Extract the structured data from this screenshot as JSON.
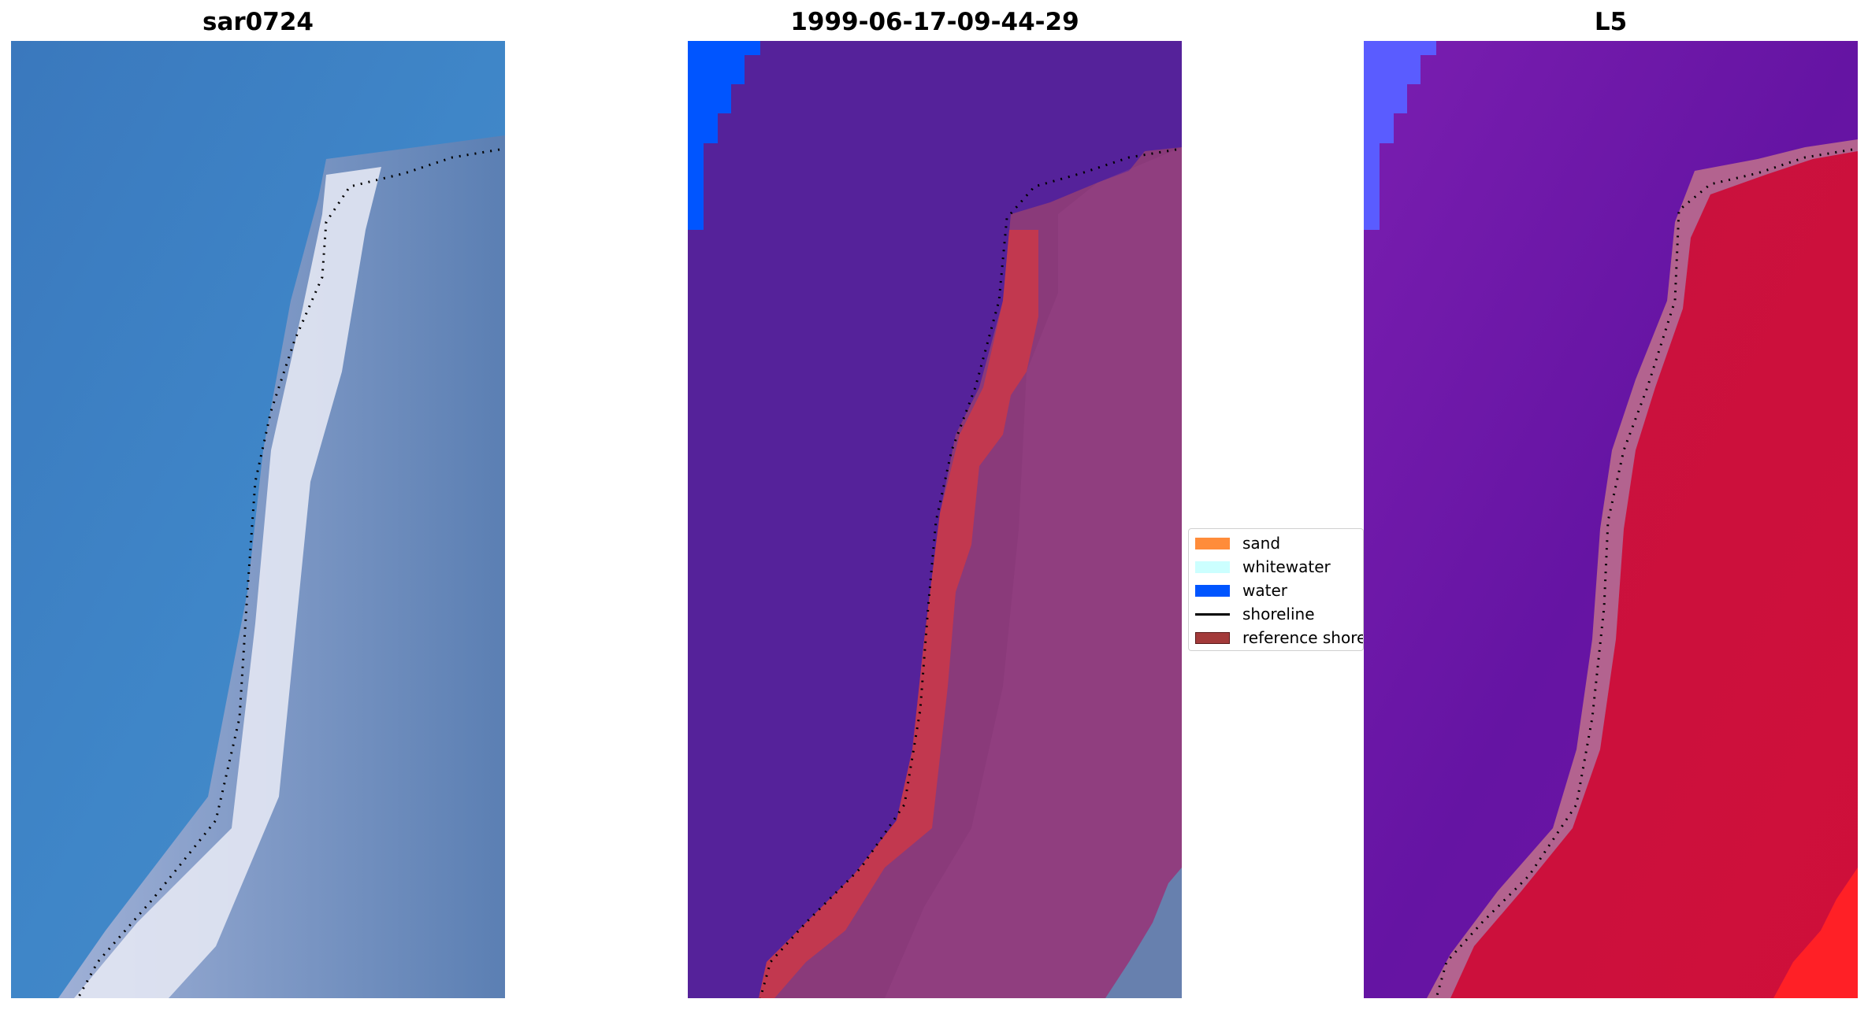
{
  "panels": [
    {
      "title": "sar0724"
    },
    {
      "title": "1999-06-17-09-44-29"
    },
    {
      "title": "L5"
    }
  ],
  "legend": {
    "items": [
      {
        "label": "sand",
        "color": "#ff8c3a",
        "kind": "patch"
      },
      {
        "label": "whitewater",
        "color": "#ccffff",
        "kind": "patch"
      },
      {
        "label": "water",
        "color": "#0055ff",
        "kind": "patch"
      },
      {
        "label": "shoreline",
        "color": "#000000",
        "kind": "line"
      },
      {
        "label": "reference shoreline",
        "color": "#a33a3a",
        "kind": "patch"
      }
    ]
  },
  "colors": {
    "sar_water": "#3b7fc4",
    "sar_surf": "#e4e8f4",
    "sar_land": "#6b86bb",
    "class_water": "#55229a",
    "class_land": "#8a3a7a",
    "class_reference": "#c2384f",
    "class_blue_corner": "#0055ff",
    "l5_water": "#6a16a8",
    "l5_land": "#c8103c",
    "l5_blue_corner": "#5a5cff"
  }
}
